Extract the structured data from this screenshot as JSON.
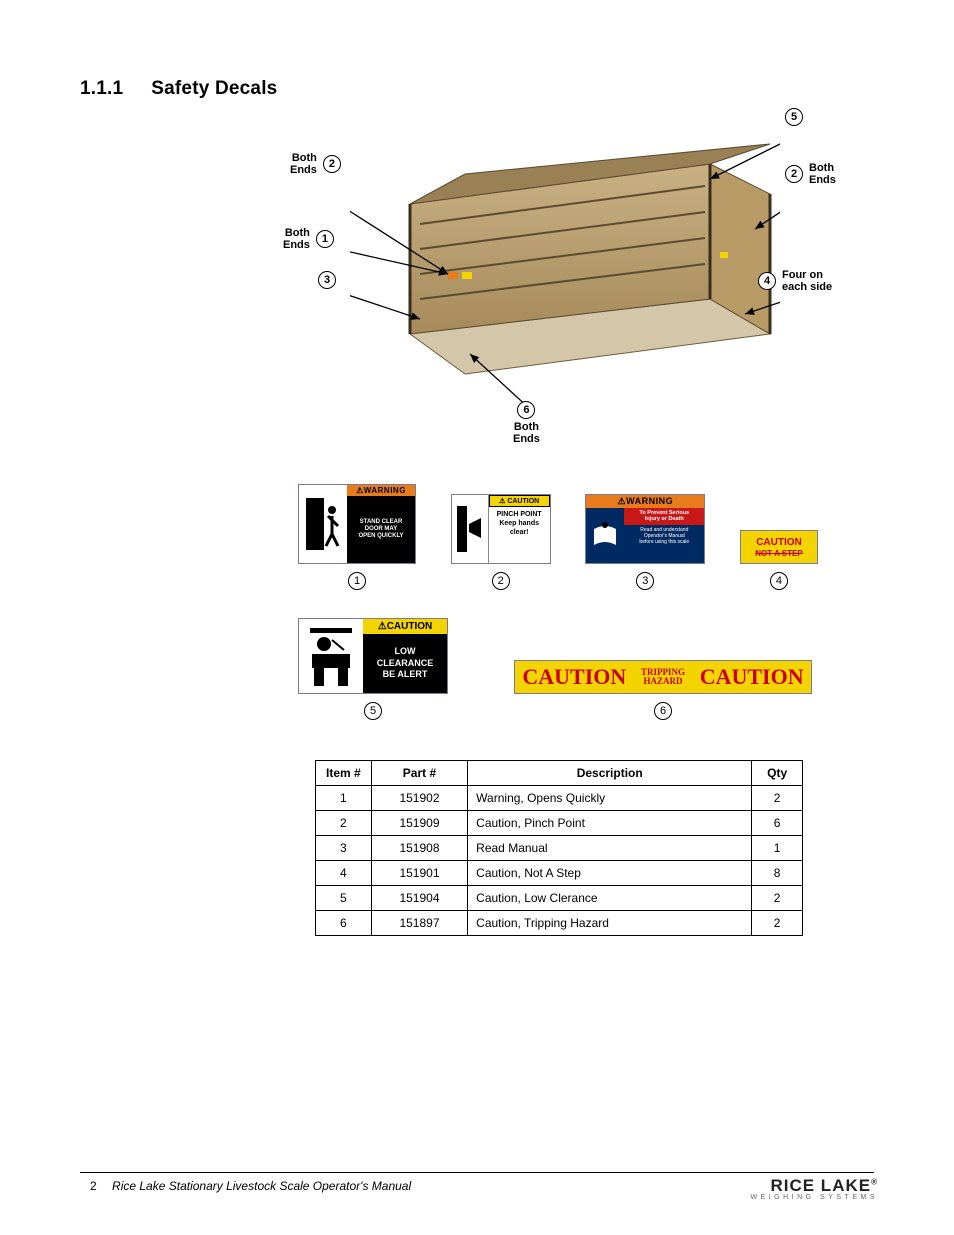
{
  "section": {
    "number": "1.1.1",
    "title": "Safety Decals"
  },
  "callouts": {
    "c1": {
      "num": "1",
      "text": "Both\nEnds"
    },
    "c2a": {
      "num": "2",
      "text": "Both\nEnds"
    },
    "c2b": {
      "num": "2",
      "text": "Both\nEnds"
    },
    "c3": {
      "num": "3",
      "text": ""
    },
    "c4": {
      "num": "4",
      "text": "Four on\neach side"
    },
    "c5": {
      "num": "5",
      "text": ""
    },
    "c6": {
      "num": "6",
      "text": "Both\nEnds"
    }
  },
  "decals1": [
    {
      "num": "1",
      "type": "warning",
      "header": "⚠WARNING",
      "body": "STAND CLEAR\nDOOR MAY\nOPEN QUICKLY",
      "hdr_bg": "#e87b1c",
      "body_bg": "#000",
      "body_color": "#fff"
    },
    {
      "num": "2",
      "type": "caution",
      "header": "⚠ CAUTION",
      "body": "PINCH POINT\nKeep hands\nclear!",
      "hdr_bg": "#f3d400",
      "body_bg": "#fff",
      "body_color": "#000"
    },
    {
      "num": "3",
      "type": "warning",
      "header": "⚠WARNING",
      "sub": "To Prevent Serious\nInjury or Death",
      "body": "Read and understand\nOperator's Manual\nbefore using this scale",
      "hdr_bg": "#e87b1c",
      "sub_bg": "#c91818",
      "body_bg": "#002a62"
    },
    {
      "num": "4",
      "type": "notstep",
      "header": "CAUTION",
      "body": "NOT A STEP",
      "bg": "#f3d400"
    }
  ],
  "decals2": [
    {
      "num": "5",
      "header": "⚠CAUTION",
      "body": "LOW\nCLEARANCE\nBE ALERT",
      "hdr_bg": "#f3d400",
      "body_bg": "#000"
    },
    {
      "num": "6",
      "left": "CAUTION",
      "mid": "TRIPPING\nHAZARD",
      "right": "CAUTION",
      "bg": "#f3d400",
      "color": "#c00"
    }
  ],
  "table": {
    "headers": [
      "Item #",
      "Part #",
      "Description",
      "Qty"
    ],
    "col_widths": [
      "55px",
      "95px",
      "260px",
      "50px"
    ],
    "rows": [
      [
        "1",
        "151902",
        "Warning, Opens Quickly",
        "2"
      ],
      [
        "2",
        "151909",
        "Caution, Pinch Point",
        "6"
      ],
      [
        "3",
        "151908",
        "Read Manual",
        "1"
      ],
      [
        "4",
        "151901",
        "Caution, Not A Step",
        "8"
      ],
      [
        "5",
        "151904",
        "Caution, Low Clerance",
        "2"
      ],
      [
        "6",
        "151897",
        "Caution, Tripping Hazard",
        "2"
      ]
    ]
  },
  "footer": {
    "page": "2",
    "title": "Rice Lake Stationary Livestock Scale Operator's Manual"
  },
  "logo": {
    "top": "RICE LAKE",
    "reg": "®",
    "bottom": "WEIGHING SYSTEMS"
  }
}
